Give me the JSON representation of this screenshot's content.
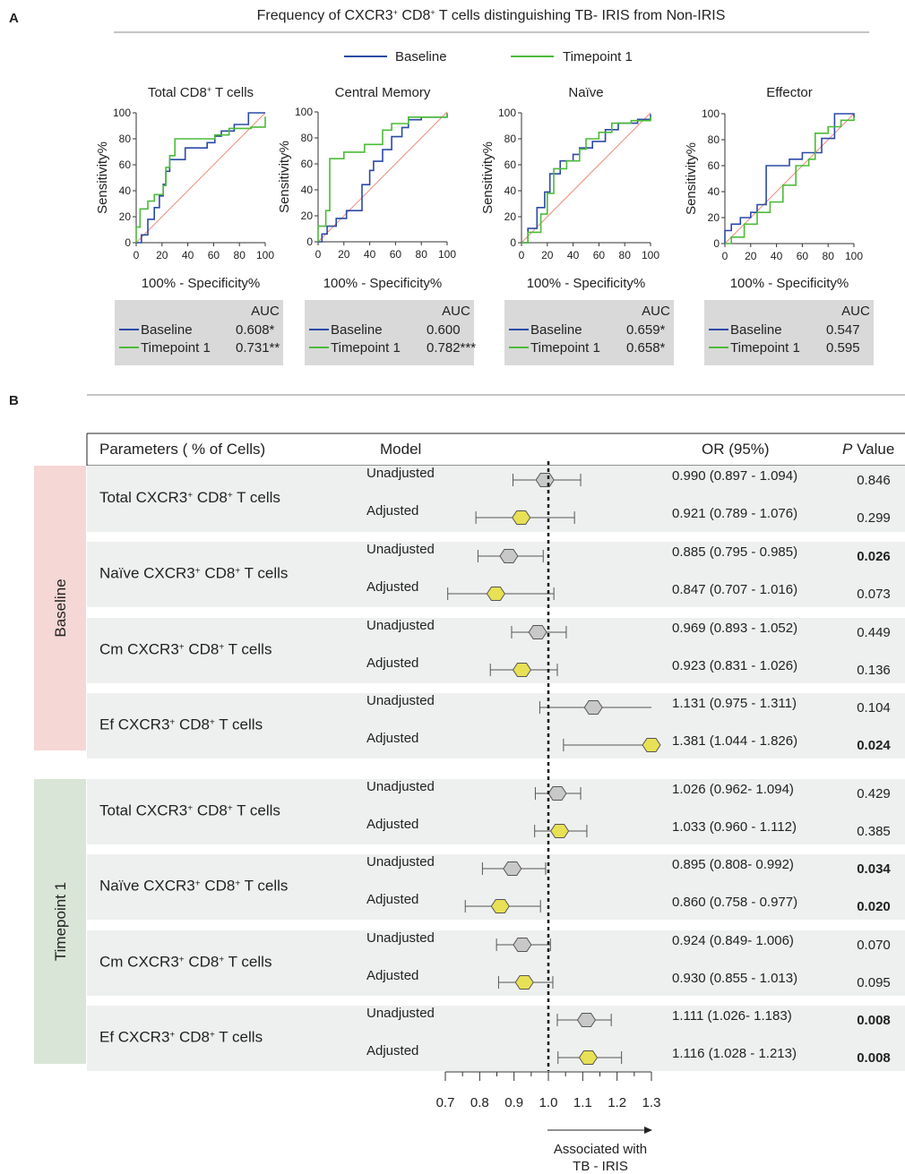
{
  "panel_labels": {
    "a": "A",
    "b": "B"
  },
  "panel_a": {
    "title_html": "Frequency of CXCR3<tspan baseline-shift=\"super\" font-size=\"9\">+</tspan> CD8<tspan baseline-shift=\"super\" font-size=\"9\">+</tspan> T cells distinguishing TB- IRIS from Non-IRIS",
    "legend": [
      {
        "label": "Baseline",
        "color": "#2b4aa6"
      },
      {
        "label": "Timepoint 1",
        "color": "#4cbb38"
      }
    ],
    "xlabel": "100% - Specificity%",
    "ylabel": "Sensitivity%",
    "ticks": [
      "0",
      "20",
      "40",
      "60",
      "80",
      "100"
    ],
    "auc_header": "AUC",
    "plots": [
      {
        "title_html": "Total CD8<tspan baseline-shift=\"super\" font-size=\"9\">+</tspan> T cells",
        "auc": [
          "0.608*",
          "0.731**"
        ]
      },
      {
        "title_html": "Central Memory",
        "auc": [
          "0.600",
          "0.782***"
        ]
      },
      {
        "title_html": "Naïve",
        "auc": [
          "0.659*",
          "0.658*"
        ]
      },
      {
        "title_html": "Effector",
        "auc": [
          "0.547",
          "0.595"
        ]
      }
    ]
  },
  "panel_b": {
    "headers": {
      "parameters": "Parameters ( % of Cells)",
      "model": "Model",
      "or": "OR (95%)",
      "p_italic": "P",
      "p_rest": " Value"
    },
    "groups": [
      {
        "label": "Baseline",
        "color": "#f5d7d5"
      },
      {
        "label": "Timepoint 1",
        "color": "#d9e5d6"
      }
    ],
    "axis_ticks": [
      "0.7",
      "0.8",
      "0.9",
      "1.0",
      "1.1",
      "1.2",
      "1.3"
    ],
    "annotation_line1": "Associated with",
    "annotation_line2": "TB - IRIS",
    "unadjusted_color": "#c8c8c8",
    "adjusted_color": "#e8e055"
  },
  "chart_data": [
    {
      "type": "line",
      "title": "Total CD8+ T cells",
      "xlabel": "100% - Specificity%",
      "ylabel": "Sensitivity%",
      "xlim": [
        0,
        100
      ],
      "ylim": [
        0,
        100
      ],
      "series": [
        {
          "name": "Baseline",
          "x": [
            0,
            4,
            4,
            9,
            9,
            14,
            14,
            18,
            18,
            21,
            21,
            23,
            23,
            26,
            26,
            38,
            38,
            43,
            43,
            55,
            55,
            61,
            61,
            66,
            66,
            76,
            76,
            87,
            87,
            100
          ],
          "y": [
            0,
            0,
            6,
            6,
            18,
            18,
            27,
            27,
            36,
            36,
            45,
            45,
            55,
            55,
            64,
            64,
            73,
            73,
            73,
            73,
            77,
            77,
            82,
            82,
            86,
            86,
            91,
            91,
            100,
            100
          ]
        },
        {
          "name": "Timepoint 1",
          "x": [
            0,
            0,
            3,
            3,
            9,
            9,
            14,
            14,
            21,
            21,
            23,
            23,
            26,
            26,
            30,
            30,
            50,
            50,
            61,
            61,
            72,
            72,
            89,
            89,
            100,
            100
          ],
          "y": [
            0,
            12,
            12,
            26,
            26,
            32,
            32,
            37,
            37,
            44,
            44,
            58,
            58,
            67,
            67,
            80,
            80,
            80,
            80,
            83,
            83,
            88,
            88,
            89,
            89,
            97
          ]
        }
      ],
      "reference_line": {
        "x": [
          0,
          100
        ],
        "y": [
          0,
          100
        ]
      },
      "auc": {
        "Baseline": "0.608*",
        "Timepoint 1": "0.731**"
      }
    },
    {
      "type": "line",
      "title": "Central Memory",
      "xlabel": "100% - Specificity%",
      "ylabel": "Sensitivity%",
      "xlim": [
        0,
        100
      ],
      "ylim": [
        0,
        100
      ],
      "series": [
        {
          "name": "Baseline",
          "x": [
            0,
            3,
            3,
            7,
            7,
            14,
            14,
            22,
            22,
            34,
            34,
            40,
            40,
            43,
            43,
            50,
            50,
            57,
            57,
            65,
            65,
            70,
            70,
            80,
            80,
            100,
            100
          ],
          "y": [
            0,
            0,
            6,
            6,
            12,
            12,
            18,
            18,
            24,
            24,
            44,
            44,
            55,
            55,
            62,
            62,
            71,
            71,
            81,
            81,
            88,
            88,
            94,
            94,
            96,
            96,
            99
          ]
        },
        {
          "name": "Timepoint 1",
          "x": [
            0,
            0,
            6,
            6,
            9,
            9,
            20,
            20,
            36,
            36,
            50,
            50,
            57,
            57,
            70,
            70,
            100,
            100
          ],
          "y": [
            0,
            12,
            12,
            24,
            24,
            64,
            64,
            69,
            69,
            75,
            75,
            86,
            86,
            91,
            91,
            96,
            96,
            99
          ]
        }
      ],
      "reference_line": {
        "x": [
          0,
          100
        ],
        "y": [
          0,
          100
        ]
      },
      "auc": {
        "Baseline": "0.600",
        "Timepoint 1": "0.782***"
      }
    },
    {
      "type": "line",
      "title": "Naïve",
      "xlabel": "100% - Specificity%",
      "ylabel": "Sensitivity%",
      "xlim": [
        0,
        100
      ],
      "ylim": [
        0,
        100
      ],
      "series": [
        {
          "name": "Baseline",
          "x": [
            0,
            5,
            5,
            12,
            12,
            18,
            18,
            22,
            22,
            30,
            30,
            40,
            40,
            45,
            45,
            55,
            55,
            65,
            65,
            75,
            75,
            90,
            90,
            100,
            100
          ],
          "y": [
            0,
            0,
            11,
            11,
            27,
            27,
            39,
            39,
            53,
            53,
            63,
            63,
            68,
            68,
            73,
            73,
            78,
            78,
            87,
            87,
            92,
            92,
            95,
            95,
            99
          ]
        },
        {
          "name": "Timepoint 1",
          "x": [
            0,
            5,
            5,
            15,
            15,
            20,
            20,
            25,
            25,
            35,
            35,
            45,
            45,
            50,
            50,
            60,
            60,
            70,
            70,
            85,
            85,
            100,
            100
          ],
          "y": [
            0,
            0,
            8,
            8,
            22,
            22,
            38,
            38,
            57,
            57,
            63,
            63,
            72,
            72,
            80,
            80,
            85,
            85,
            92,
            92,
            94,
            94,
            97
          ]
        }
      ],
      "reference_line": {
        "x": [
          0,
          100
        ],
        "y": [
          0,
          100
        ]
      },
      "auc": {
        "Baseline": "0.659*",
        "Timepoint 1": "0.658*"
      }
    },
    {
      "type": "line",
      "title": "Effector",
      "xlabel": "100% - Specificity%",
      "ylabel": "Sensitivity%",
      "xlim": [
        0,
        100
      ],
      "ylim": [
        0,
        100
      ],
      "series": [
        {
          "name": "Baseline",
          "x": [
            0,
            0,
            5,
            5,
            12,
            12,
            20,
            20,
            25,
            25,
            32,
            32,
            50,
            50,
            60,
            60,
            75,
            75,
            85,
            85,
            100,
            100
          ],
          "y": [
            0,
            10,
            10,
            15,
            15,
            20,
            20,
            24,
            24,
            30,
            30,
            60,
            60,
            65,
            65,
            70,
            70,
            81,
            81,
            100,
            100,
            97
          ]
        },
        {
          "name": "Timepoint 1",
          "x": [
            0,
            5,
            5,
            15,
            15,
            25,
            25,
            35,
            35,
            45,
            45,
            55,
            55,
            65,
            65,
            70,
            70,
            80,
            80,
            90,
            90,
            100,
            100
          ],
          "y": [
            0,
            0,
            5,
            5,
            15,
            15,
            24,
            24,
            32,
            32,
            45,
            45,
            60,
            60,
            65,
            65,
            85,
            85,
            90,
            90,
            95,
            95,
            98
          ]
        }
      ],
      "reference_line": {
        "x": [
          0,
          100
        ],
        "y": [
          0,
          100
        ]
      },
      "auc": {
        "Baseline": "0.547",
        "Timepoint 1": "0.595"
      }
    },
    {
      "type": "forest",
      "xlim": [
        0.7,
        1.3
      ],
      "reference_x": 1.0,
      "columns": [
        "Parameters ( % of Cells)",
        "Model",
        "OR (95%)",
        "P Value"
      ],
      "groups": [
        {
          "group": "Baseline",
          "parameters": [
            {
              "label_html": "Total CXCR3<sup>+</sup> CD8<sup>+</sup> T cells",
              "rows": [
                {
                  "model": "Unadjusted",
                  "or": 0.99,
                  "lo": 0.897,
                  "hi": 1.094,
                  "text": "0.990 (0.897 - 1.094)",
                  "p": "0.846",
                  "bold": false
                },
                {
                  "model": "Adjusted",
                  "or": 0.921,
                  "lo": 0.789,
                  "hi": 1.076,
                  "text": "0.921 (0.789 - 1.076)",
                  "p": "0.299",
                  "bold": false
                }
              ]
            },
            {
              "label_html": "Naïve CXCR3<sup>+</sup> CD8<sup>+</sup> T cells",
              "rows": [
                {
                  "model": "Unadjusted",
                  "or": 0.885,
                  "lo": 0.795,
                  "hi": 0.985,
                  "text": "0.885 (0.795 - 0.985)",
                  "p": "0.026",
                  "bold": true
                },
                {
                  "model": "Adjusted",
                  "or": 0.847,
                  "lo": 0.707,
                  "hi": 1.016,
                  "text": "0.847 (0.707 - 1.016)",
                  "p": "0.073",
                  "bold": false
                }
              ]
            },
            {
              "label_html": "Cm CXCR3<sup>+</sup> CD8<sup>+</sup> T cells",
              "rows": [
                {
                  "model": "Unadjusted",
                  "or": 0.969,
                  "lo": 0.893,
                  "hi": 1.052,
                  "text": "0.969 (0.893 - 1.052)",
                  "p": "0.449",
                  "bold": false
                },
                {
                  "model": "Adjusted",
                  "or": 0.923,
                  "lo": 0.831,
                  "hi": 1.026,
                  "text": "0.923 (0.831 - 1.026)",
                  "p": "0.136",
                  "bold": false
                }
              ]
            },
            {
              "label_html": "Ef CXCR3<sup>+</sup> CD8<sup>+</sup> T cells",
              "rows": [
                {
                  "model": "Unadjusted",
                  "or": 1.131,
                  "lo": 0.975,
                  "hi": 1.311,
                  "text": "1.131 (0.975 - 1.311)",
                  "p": "0.104",
                  "bold": false
                },
                {
                  "model": "Adjusted",
                  "or": 1.381,
                  "lo": 1.044,
                  "hi": 1.826,
                  "text": "1.381 (1.044 - 1.826)",
                  "p": "0.024",
                  "bold": true
                }
              ]
            }
          ]
        },
        {
          "group": "Timepoint 1",
          "parameters": [
            {
              "label_html": "Total CXCR3<sup>+</sup> CD8<sup>+</sup> T cells",
              "rows": [
                {
                  "model": "Unadjusted",
                  "or": 1.026,
                  "lo": 0.962,
                  "hi": 1.094,
                  "text": "1.026 (0.962- 1.094)",
                  "p": "0.429",
                  "bold": false
                },
                {
                  "model": "Adjusted",
                  "or": 1.033,
                  "lo": 0.96,
                  "hi": 1.112,
                  "text": "1.033 (0.960 - 1.112)",
                  "p": "0.385",
                  "bold": false
                }
              ]
            },
            {
              "label_html": "Naïve CXCR3<sup>+</sup> CD8<sup>+</sup> T cells",
              "rows": [
                {
                  "model": "Unadjusted",
                  "or": 0.895,
                  "lo": 0.808,
                  "hi": 0.992,
                  "text": "0.895 (0.808- 0.992)",
                  "p": "0.034",
                  "bold": true
                },
                {
                  "model": "Adjusted",
                  "or": 0.86,
                  "lo": 0.758,
                  "hi": 0.977,
                  "text": "0.860 (0.758 - 0.977)",
                  "p": "0.020",
                  "bold": true
                }
              ]
            },
            {
              "label_html": "Cm CXCR3<sup>+</sup> CD8<sup>+</sup> T cells",
              "rows": [
                {
                  "model": "Unadjusted",
                  "or": 0.924,
                  "lo": 0.849,
                  "hi": 1.006,
                  "text": "0.924 (0.849- 1.006)",
                  "p": "0.070",
                  "bold": false
                },
                {
                  "model": "Adjusted",
                  "or": 0.93,
                  "lo": 0.855,
                  "hi": 1.013,
                  "text": "0.930 (0.855 - 1.013)",
                  "p": "0.095",
                  "bold": false
                }
              ]
            },
            {
              "label_html": "Ef CXCR3<sup>+</sup> CD8<sup>+</sup> T cells",
              "rows": [
                {
                  "model": "Unadjusted",
                  "or": 1.111,
                  "lo": 1.026,
                  "hi": 1.183,
                  "text": "1.111 (1.026- 1.183)",
                  "p": "0.008",
                  "bold": true
                },
                {
                  "model": "Adjusted",
                  "or": 1.116,
                  "lo": 1.028,
                  "hi": 1.213,
                  "text": "1.116 (1.028 - 1.213)",
                  "p": "0.008",
                  "bold": true
                }
              ]
            }
          ]
        }
      ]
    }
  ]
}
